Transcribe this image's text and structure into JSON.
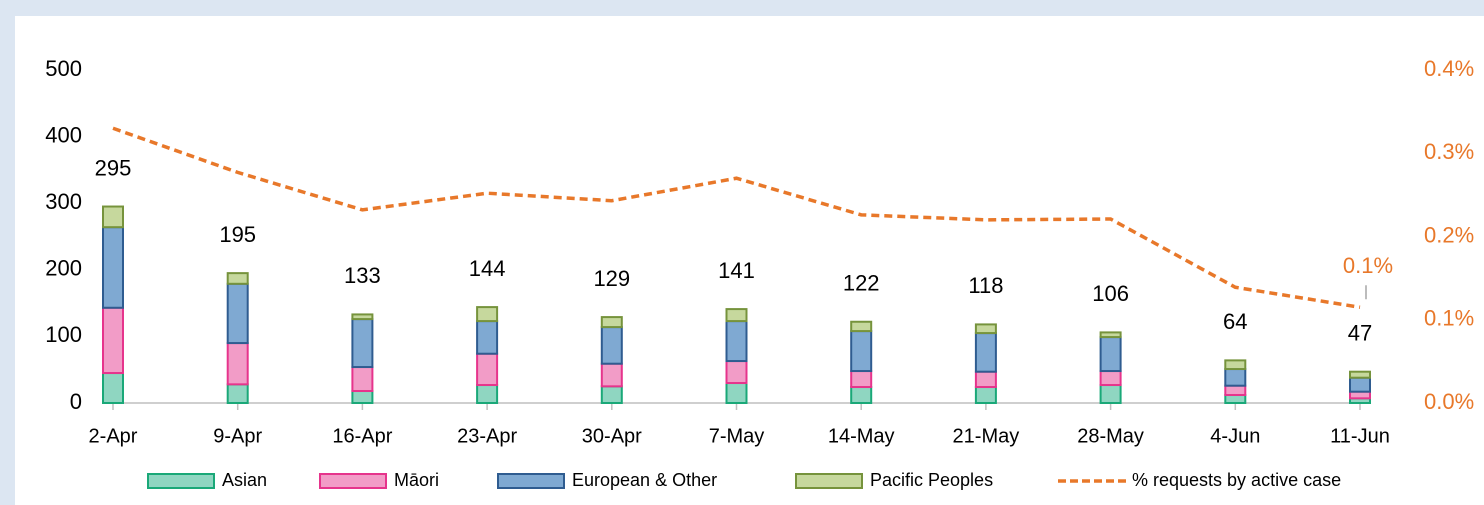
{
  "chart_data": {
    "type": "bar",
    "categories": [
      "2-Apr",
      "9-Apr",
      "16-Apr",
      "23-Apr",
      "30-Apr",
      "7-May",
      "14-May",
      "21-May",
      "28-May",
      "4-Jun",
      "11-Jun"
    ],
    "series": [
      {
        "name": "Asian",
        "color": "#8fd6c1",
        "edge": "#1aa878",
        "values": [
          45,
          28,
          18,
          27,
          25,
          30,
          24,
          24,
          27,
          12,
          7
        ]
      },
      {
        "name": "Māori",
        "color": "#f29cc7",
        "edge": "#e6348c",
        "values": [
          98,
          62,
          36,
          47,
          34,
          33,
          24,
          23,
          21,
          14,
          10
        ]
      },
      {
        "name": "European & Other",
        "color": "#7fa9d2",
        "edge": "#2f5c90",
        "values": [
          121,
          89,
          72,
          49,
          55,
          60,
          60,
          58,
          51,
          25,
          21
        ]
      },
      {
        "name": "Pacific Peoples",
        "color": "#c6d89d",
        "edge": "#76933c",
        "values": [
          31,
          16,
          7,
          21,
          15,
          18,
          14,
          13,
          7,
          13,
          9
        ]
      },
      {
        "name": "% requests by active case",
        "type": "line",
        "axis": "y2",
        "color": "#e8782a",
        "values": [
          0.33,
          0.277,
          0.232,
          0.252,
          0.243,
          0.27,
          0.226,
          0.22,
          0.221,
          0.139,
          0.115
        ],
        "value_labels": [
          null,
          null,
          null,
          null,
          null,
          null,
          null,
          null,
          null,
          null,
          "0.1%"
        ]
      }
    ],
    "totals": [
      295,
      195,
      133,
      144,
      129,
      141,
      122,
      118,
      106,
      64,
      47
    ],
    "ylim": [
      0,
      500
    ],
    "yticks": [
      0,
      100,
      200,
      300,
      400,
      500
    ],
    "y2lim": [
      0,
      0.4
    ],
    "y2ticks": [
      {
        "value": 0,
        "label": "0.0%"
      },
      {
        "value": 0.1,
        "label": "0.1%"
      },
      {
        "value": 0.2,
        "label": "0.2%"
      },
      {
        "value": 0.3,
        "label": "0.3%"
      },
      {
        "value": 0.4,
        "label": "0.4%"
      }
    ],
    "grid": false,
    "legend": "bottom"
  }
}
